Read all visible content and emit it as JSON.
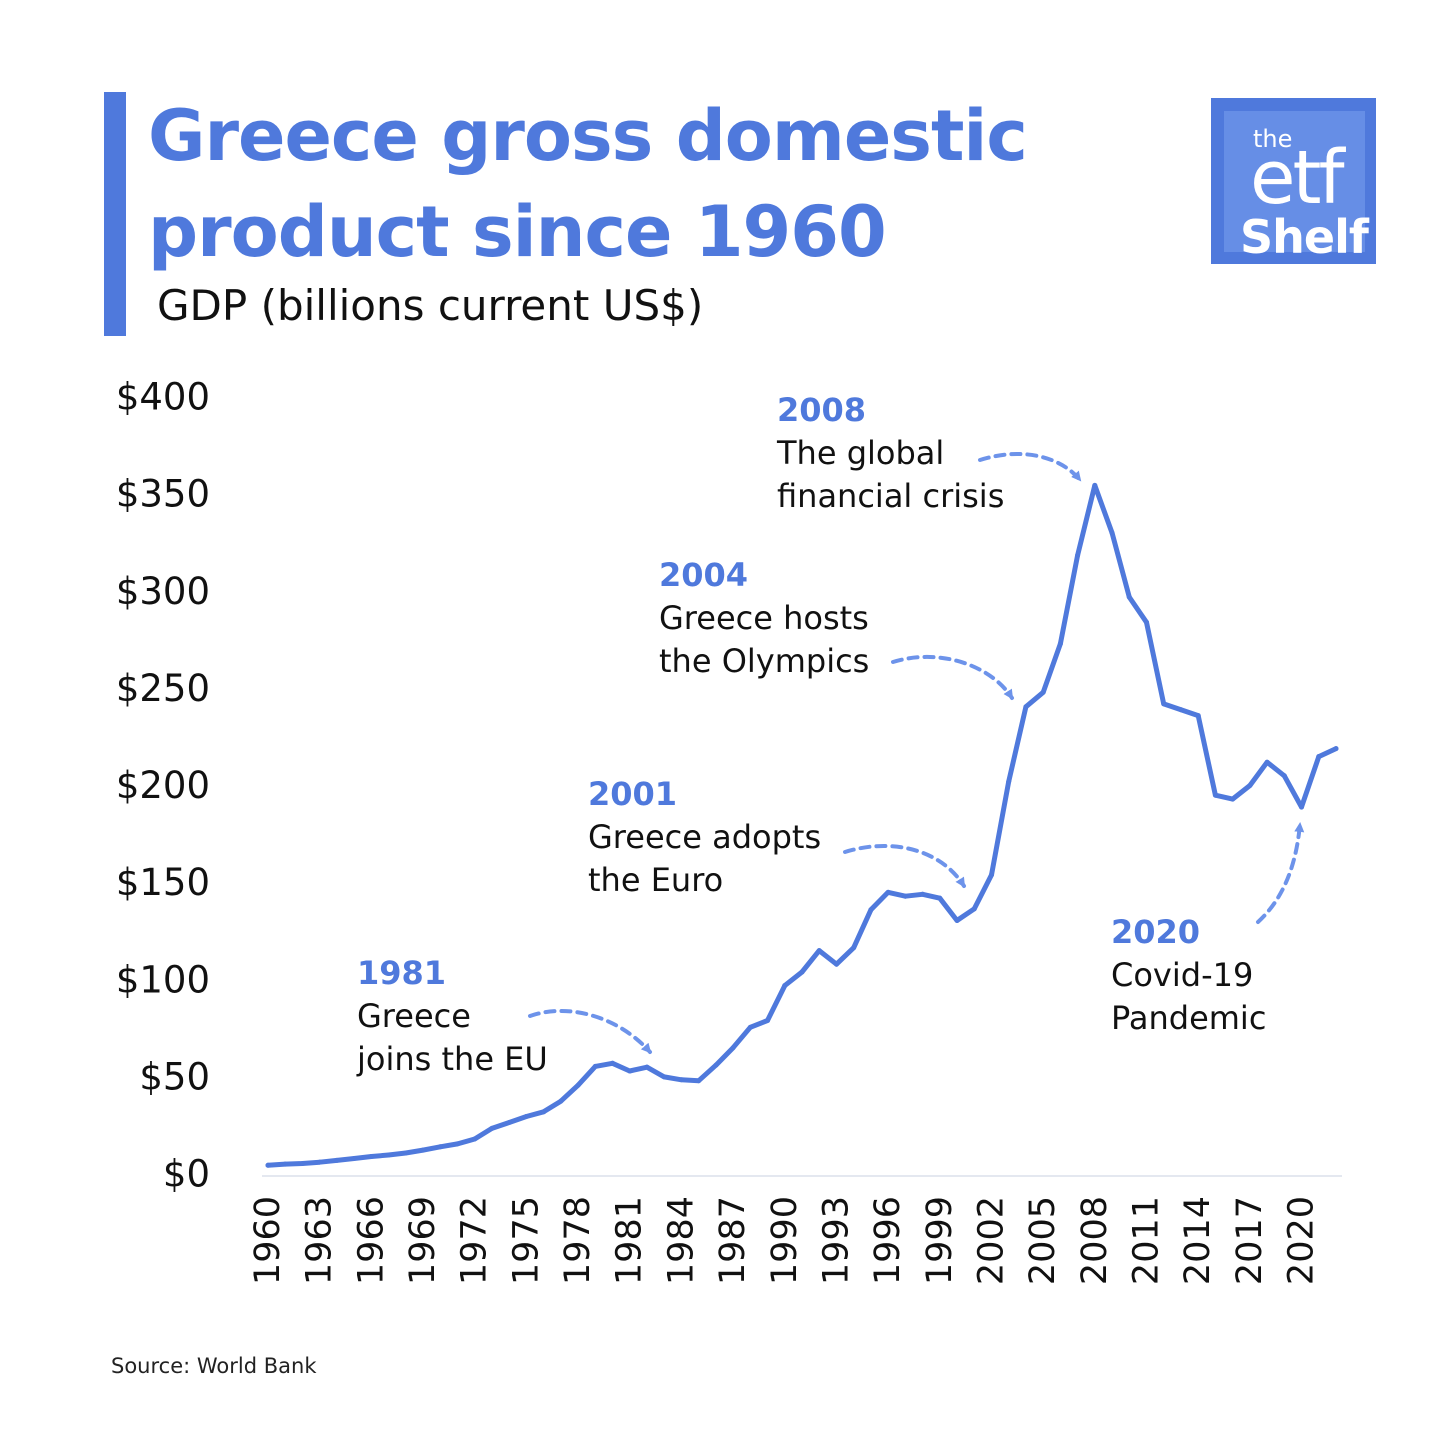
{
  "header": {
    "title_line1": "Greece gross domestic",
    "title_line2": "product since 1960",
    "subtitle": "GDP (billions current US$)"
  },
  "logo": {
    "the": "the",
    "etf": "etf",
    "shelf": "Shelf"
  },
  "footer": {
    "source": "Source: World Bank"
  },
  "colors": {
    "accent": "#4f79dc",
    "logo_inner": "#668ee6",
    "arrow": "#6d93ea",
    "axis_line": "#e4e8f0",
    "text": "#111111"
  },
  "chart_data": {
    "type": "line",
    "title": "Greece gross domestic product since 1960",
    "xlabel": "",
    "ylabel": "GDP (billions current US$)",
    "ylim": [
      0,
      400
    ],
    "xlim": [
      1960,
      2022
    ],
    "grid": false,
    "yticks": [
      0,
      50,
      100,
      150,
      200,
      250,
      300,
      350,
      400
    ],
    "ytick_labels": [
      "$0",
      "$50",
      "$100",
      "$150",
      "$200",
      "$250",
      "$300",
      "$350",
      "$400"
    ],
    "xticks": [
      1960,
      1963,
      1966,
      1969,
      1972,
      1975,
      1978,
      1981,
      1984,
      1987,
      1990,
      1993,
      1996,
      1999,
      2002,
      2005,
      2008,
      2011,
      2014,
      2017,
      2020
    ],
    "series": [
      {
        "color": "#4f79dc",
        "x": [
          1960,
          1961,
          1962,
          1963,
          1964,
          1965,
          1966,
          1967,
          1968,
          1969,
          1970,
          1971,
          1972,
          1973,
          1974,
          1975,
          1976,
          1977,
          1978,
          1979,
          1980,
          1981,
          1982,
          1983,
          1984,
          1985,
          1986,
          1987,
          1988,
          1989,
          1990,
          1991,
          1992,
          1993,
          1994,
          1995,
          1996,
          1997,
          1998,
          1999,
          2000,
          2001,
          2002,
          2003,
          2004,
          2005,
          2006,
          2007,
          2008,
          2009,
          2010,
          2011,
          2012,
          2013,
          2014,
          2015,
          2016,
          2017,
          2018,
          2019,
          2020,
          2021,
          2022
        ],
        "values": [
          4.5,
          5.1,
          5.4,
          6.1,
          7.0,
          8.0,
          9.0,
          9.8,
          10.8,
          12.3,
          14.0,
          15.5,
          18.0,
          23.5,
          26.5,
          29.6,
          32.0,
          37.5,
          45.7,
          55.4,
          57.0,
          53.0,
          55.0,
          50.0,
          48.5,
          48.0,
          56.0,
          65.0,
          75.5,
          79.0,
          97.0,
          104.0,
          115.0,
          108.0,
          116.5,
          136.0,
          145.0,
          143.0,
          144.0,
          142.0,
          130.5,
          136.5,
          154.0,
          202.0,
          240.5,
          248.0,
          273.0,
          318.5,
          354.5,
          330.0,
          297.0,
          284.0,
          242.0,
          239.0,
          236.0,
          195.0,
          193.0,
          200.0,
          212.0,
          205.0,
          188.9,
          214.9,
          219.0
        ]
      }
    ],
    "annotations": [
      {
        "year": "1981",
        "lines": [
          "Greece",
          "joins the EU"
        ]
      },
      {
        "year": "2001",
        "lines": [
          "Greece adopts",
          "the Euro"
        ]
      },
      {
        "year": "2004",
        "lines": [
          "Greece hosts",
          "the Olympics"
        ]
      },
      {
        "year": "2008",
        "lines": [
          "The global",
          "financial crisis"
        ]
      },
      {
        "year": "2020",
        "lines": [
          "Covid-19",
          "Pandemic"
        ]
      }
    ]
  }
}
